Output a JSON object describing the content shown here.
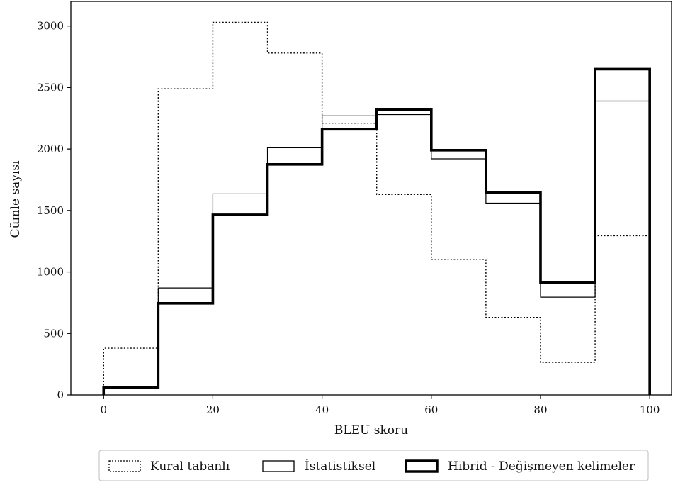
{
  "chart_data": {
    "type": "histogram",
    "xlabel": "BLEU skoru",
    "ylabel": "Cümle sayısı",
    "xlim": [
      -6,
      104
    ],
    "ylim": [
      0,
      3200
    ],
    "x_ticks": [
      0,
      20,
      40,
      60,
      80,
      100
    ],
    "y_ticks": [
      0,
      500,
      1000,
      1500,
      2000,
      2500,
      3000
    ],
    "bin_edges": [
      0,
      10,
      20,
      30,
      40,
      50,
      60,
      70,
      80,
      90,
      100
    ],
    "grid": false,
    "legend_position": "bottom-center, outside plot",
    "series": [
      {
        "name": "Kural tabanlı",
        "style": "dotted",
        "color": "#000000",
        "values": [
          380,
          2490,
          3030,
          2780,
          2210,
          1630,
          1100,
          630,
          265,
          1295
        ]
      },
      {
        "name": "İstatistiksel",
        "style": "thin-solid",
        "color": "#000000",
        "values": [
          70,
          870,
          1635,
          2010,
          2270,
          2280,
          1920,
          1560,
          795,
          2390
        ]
      },
      {
        "name": "Hibrid - Değişmeyen kelimeler",
        "style": "thick-solid",
        "color": "#000000",
        "values": [
          60,
          745,
          1465,
          1875,
          2160,
          2320,
          1990,
          1645,
          915,
          2650
        ]
      }
    ]
  }
}
